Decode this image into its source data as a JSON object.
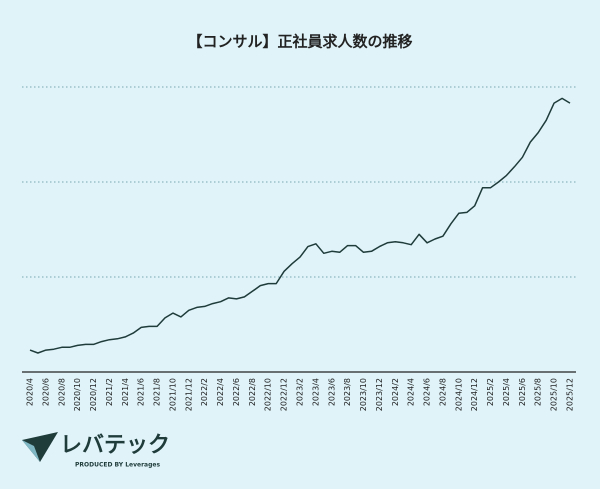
{
  "chart_data": {
    "type": "line",
    "title": "【コンサル】正社員求人数の推移",
    "logo": "レバテック",
    "logo_sub": "PRODUCED BY Leverages",
    "categories": [
      "2020/4",
      null,
      "2020/6",
      null,
      "2020/8",
      null,
      "2020/10",
      null,
      "2020/12",
      null,
      "2021/2",
      null,
      "2021/4",
      null,
      "2021/6",
      null,
      "2021/8",
      null,
      "2021/10",
      null,
      "2021/12",
      null,
      "2022/2",
      null,
      "2022/4",
      null,
      "2022/6",
      null,
      "2022/8",
      null,
      "2022/10",
      null,
      "2022/12",
      null,
      "2023/2",
      null,
      "2023/4",
      null,
      "2023/6",
      null,
      "2023/8",
      null,
      "2023/10",
      null,
      "2023/12",
      null,
      "2024/2",
      null,
      "2024/4",
      null,
      "2024/6",
      null,
      "2024/8",
      null,
      "2024/10",
      null,
      "2024/12",
      null,
      "2025/2",
      null,
      "2025/4",
      null,
      "2025/6",
      null,
      "2025/8",
      null,
      "2025/10",
      null,
      "2025/12"
    ],
    "series": [
      {
        "color": "#1f3b3a",
        "values": [
          23,
          20,
          23,
          24,
          26,
          26,
          28,
          29,
          29,
          32,
          34,
          35,
          37,
          41,
          47,
          48,
          48,
          57,
          62,
          58,
          65,
          68,
          69,
          72,
          74,
          78,
          77,
          79,
          85,
          91,
          93,
          93,
          106,
          114,
          121,
          132,
          135,
          125,
          127,
          126,
          133,
          133,
          126,
          127,
          132,
          136,
          137,
          136,
          134,
          145,
          136,
          140,
          143,
          156,
          167,
          168,
          175,
          194,
          194,
          200,
          207,
          216,
          226,
          242,
          252,
          265,
          283,
          288,
          283
        ]
      }
    ],
    "ylim": [
      0,
      300
    ],
    "gridlines": [
      100,
      200,
      300
    ],
    "grid": true
  }
}
